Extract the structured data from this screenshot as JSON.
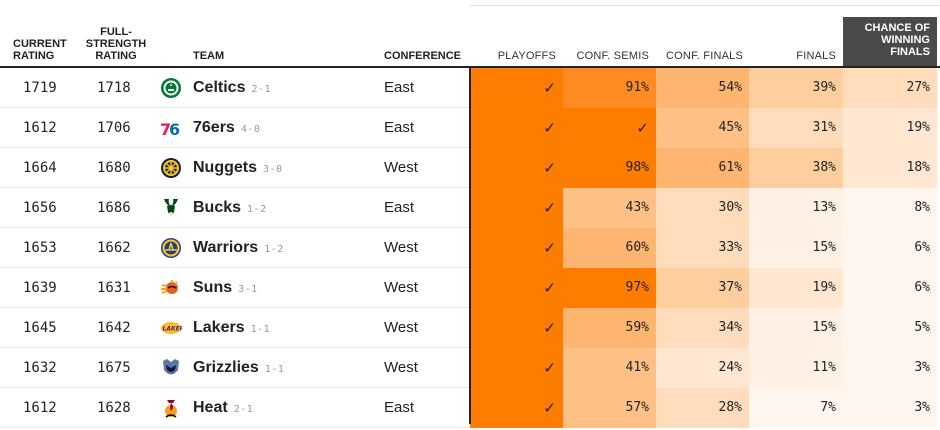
{
  "headers": {
    "current_rating": [
      "CURRENT",
      "RATING"
    ],
    "full_strength": [
      "FULL-",
      "STRENGTH",
      "RATING"
    ],
    "team": "TEAM",
    "conference": "CONFERENCE",
    "playoffs": "PLAYOFFS",
    "conf_semis": "CONF. SEMIS",
    "conf_finals": "CONF. FINALS",
    "finals": "FINALS",
    "win_finals": [
      "CHANCE OF",
      "WINNING",
      "FINALS"
    ]
  },
  "colors": {
    "c100": "#fe7c00",
    "c90": "#fe8c22",
    "c60": "#feb56f",
    "c50": "#fec085",
    "c40": "#fece9f",
    "c30": "#ffdcbb",
    "c20": "#ffe7d1",
    "c10": "#fff1e3",
    "c5": "#fff7ef"
  },
  "rows": [
    {
      "current": "1719",
      "full": "1718",
      "team": "Celtics",
      "record": "2-1",
      "conference": "East",
      "logo": "celtics-logo",
      "playoffs": "✓",
      "semis": "91%",
      "conf_finals": "54%",
      "finals": "39%",
      "win": "27%",
      "bg": [
        "#fe7c00",
        "#fe8c22",
        "#feb56f",
        "#fece9f",
        "#ffdcbb"
      ]
    },
    {
      "current": "1612",
      "full": "1706",
      "team": "76ers",
      "record": "4-0",
      "conference": "East",
      "logo": "76ers-logo",
      "playoffs": "✓",
      "semis": "✓",
      "conf_finals": "45%",
      "finals": "31%",
      "win": "19%",
      "bg": [
        "#fe7c00",
        "#fe7c00",
        "#fec085",
        "#ffdcbb",
        "#ffe7d1"
      ]
    },
    {
      "current": "1664",
      "full": "1680",
      "team": "Nuggets",
      "record": "3-0",
      "conference": "West",
      "logo": "nuggets-logo",
      "playoffs": "✓",
      "semis": "98%",
      "conf_finals": "61%",
      "finals": "38%",
      "win": "18%",
      "bg": [
        "#fe7c00",
        "#fe7c00",
        "#feb56f",
        "#fece9f",
        "#ffe7d1"
      ]
    },
    {
      "current": "1656",
      "full": "1686",
      "team": "Bucks",
      "record": "1-2",
      "conference": "East",
      "logo": "bucks-logo",
      "playoffs": "✓",
      "semis": "43%",
      "conf_finals": "30%",
      "finals": "13%",
      "win": "8%",
      "bg": [
        "#fe7c00",
        "#fec085",
        "#ffdcbb",
        "#fff1e3",
        "#fff7ef"
      ]
    },
    {
      "current": "1653",
      "full": "1662",
      "team": "Warriors",
      "record": "1-2",
      "conference": "West",
      "logo": "warriors-logo",
      "playoffs": "✓",
      "semis": "60%",
      "conf_finals": "33%",
      "finals": "15%",
      "win": "6%",
      "bg": [
        "#fe7c00",
        "#feb56f",
        "#ffdcbb",
        "#fff1e3",
        "#fff7ef"
      ]
    },
    {
      "current": "1639",
      "full": "1631",
      "team": "Suns",
      "record": "3-1",
      "conference": "West",
      "logo": "suns-logo",
      "playoffs": "✓",
      "semis": "97%",
      "conf_finals": "37%",
      "finals": "19%",
      "win": "6%",
      "bg": [
        "#fe7c00",
        "#fe7c00",
        "#fece9f",
        "#ffe7d1",
        "#fff7ef"
      ]
    },
    {
      "current": "1645",
      "full": "1642",
      "team": "Lakers",
      "record": "1-1",
      "conference": "West",
      "logo": "lakers-logo",
      "playoffs": "✓",
      "semis": "59%",
      "conf_finals": "34%",
      "finals": "15%",
      "win": "5%",
      "bg": [
        "#fe7c00",
        "#feb56f",
        "#ffdcbb",
        "#fff1e3",
        "#fff7ef"
      ]
    },
    {
      "current": "1632",
      "full": "1675",
      "team": "Grizzlies",
      "record": "1-1",
      "conference": "West",
      "logo": "grizzlies-logo",
      "playoffs": "✓",
      "semis": "41%",
      "conf_finals": "24%",
      "finals": "11%",
      "win": "3%",
      "bg": [
        "#fe7c00",
        "#fec085",
        "#ffe7d1",
        "#fff1e3",
        "#fff7ef"
      ]
    },
    {
      "current": "1612",
      "full": "1628",
      "team": "Heat",
      "record": "2-1",
      "conference": "East",
      "logo": "heat-logo",
      "playoffs": "✓",
      "semis": "57%",
      "conf_finals": "28%",
      "finals": "7%",
      "win": "3%",
      "bg": [
        "#fe7c00",
        "#fec085",
        "#ffdcbb",
        "#fff7ef",
        "#fff7ef"
      ]
    }
  ]
}
